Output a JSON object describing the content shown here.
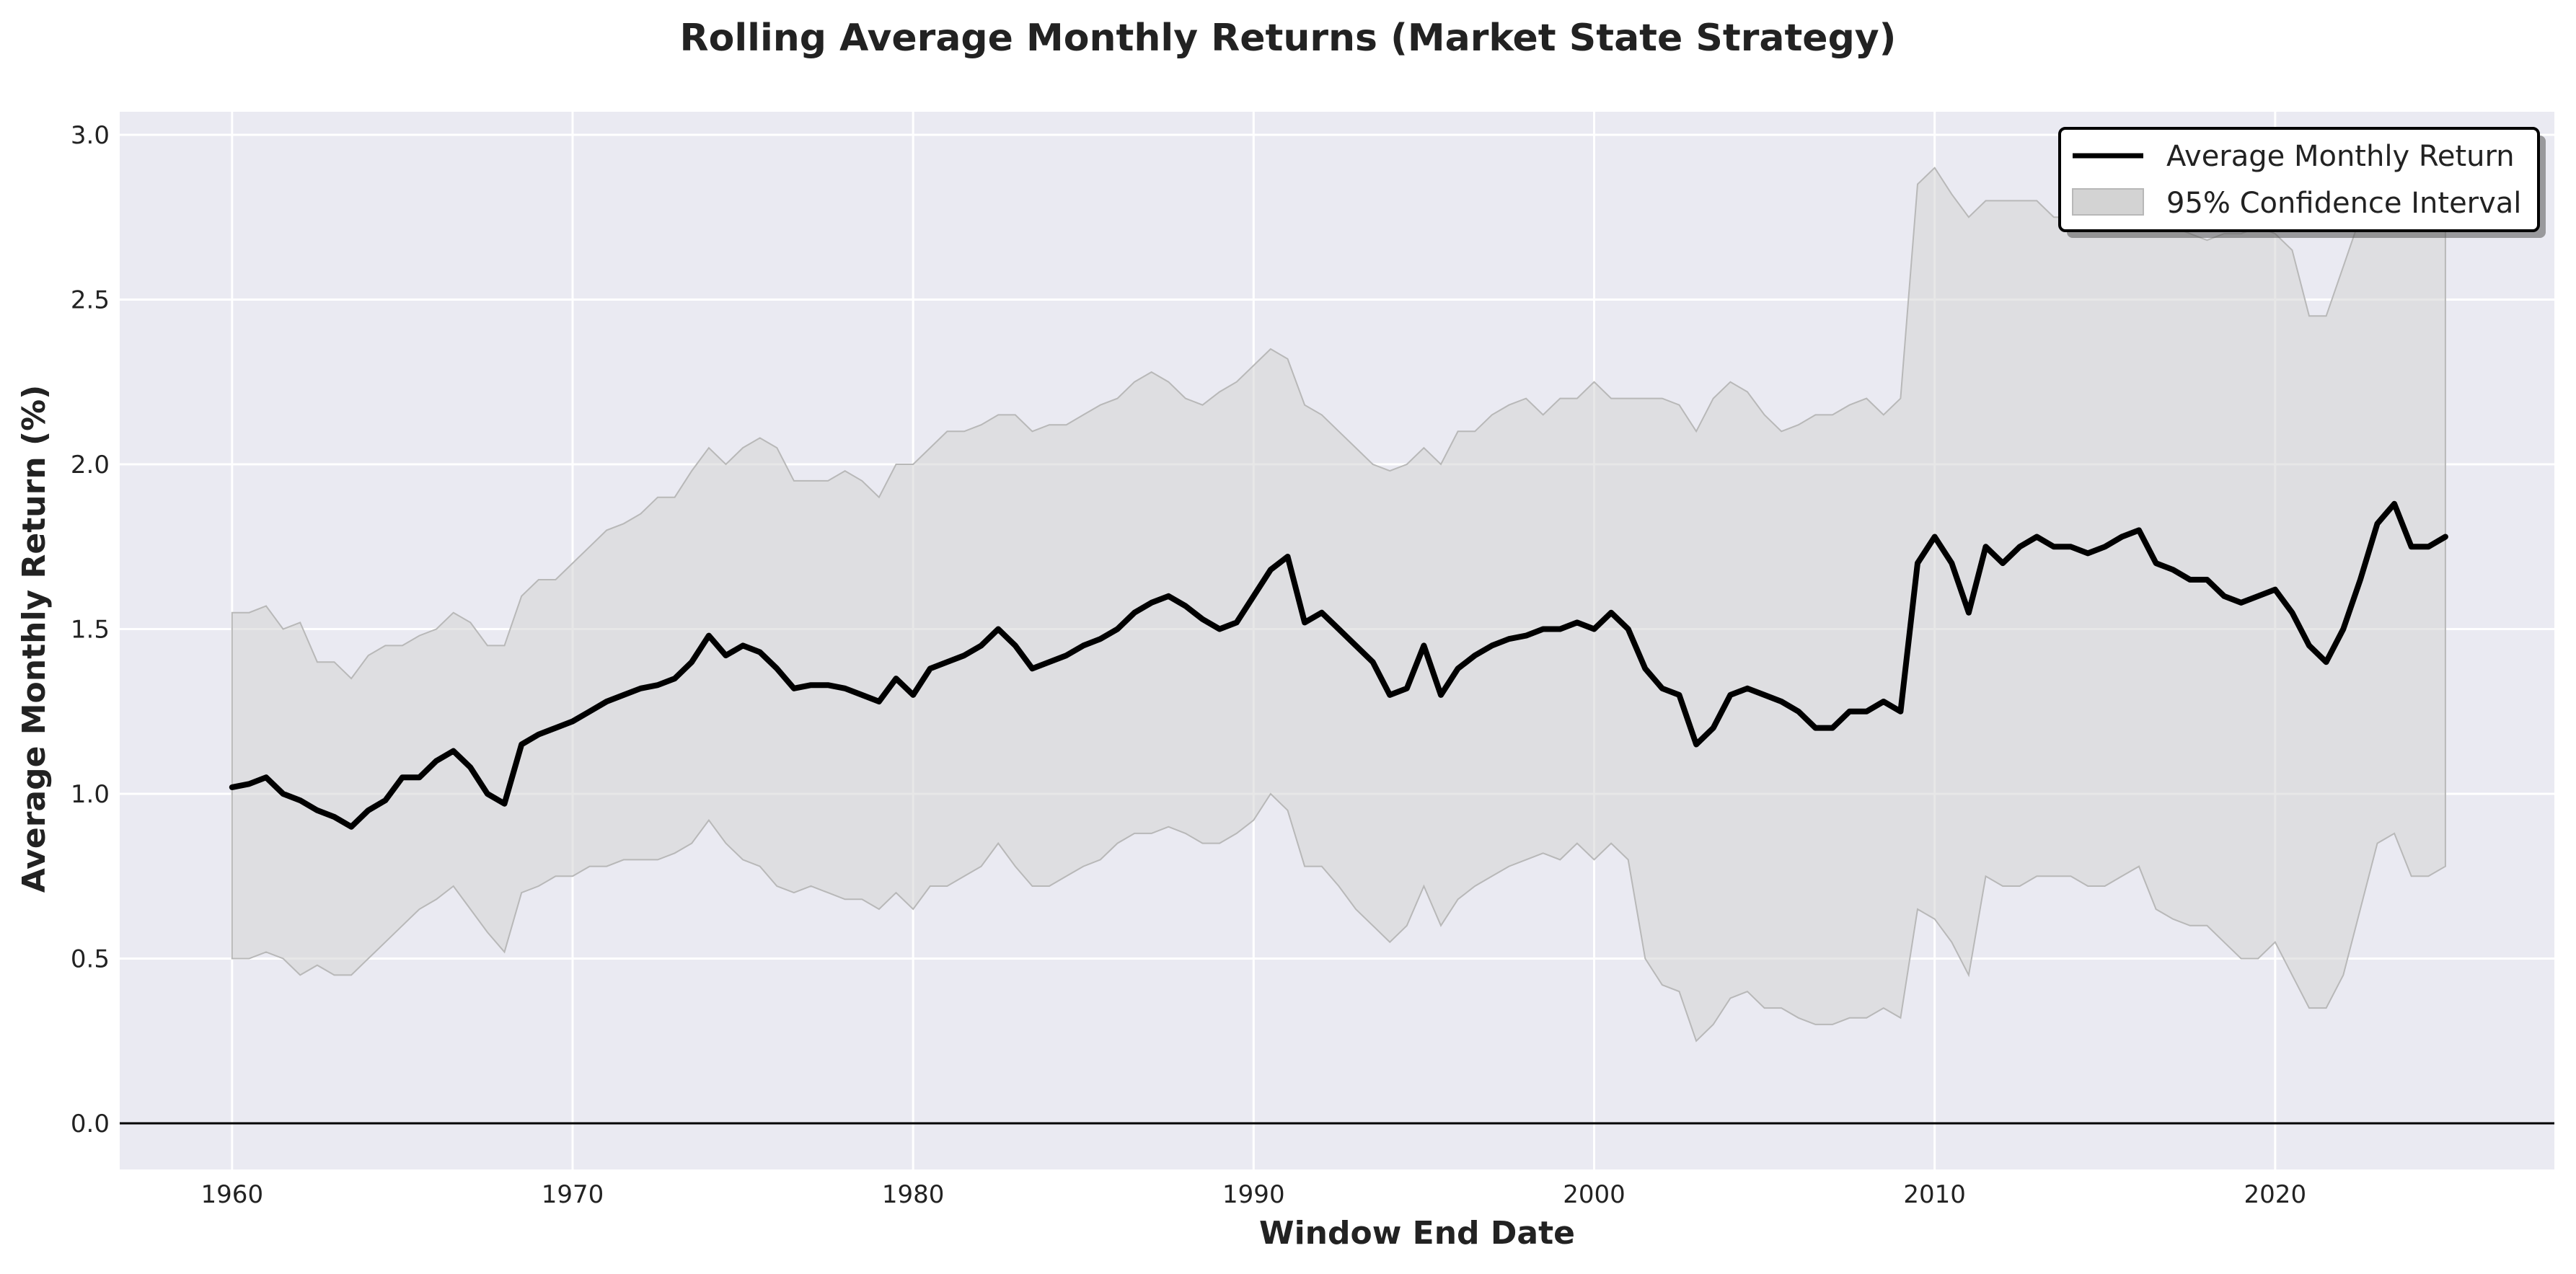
{
  "chart_data": {
    "type": "line",
    "title": "Rolling Average Monthly Returns (Market State Strategy)",
    "xlabel": "Window End Date",
    "ylabel": "Average Monthly Return (%)",
    "xlim": [
      1956.7,
      2028.2
    ],
    "ylim": [
      -0.14,
      3.07
    ],
    "x_ticks": [
      1960,
      1970,
      1980,
      1990,
      2000,
      2010,
      2020
    ],
    "y_ticks": [
      0.0,
      0.5,
      1.0,
      1.5,
      2.0,
      2.5,
      3.0
    ],
    "y_tick_labels": [
      "0.0",
      "0.5",
      "1.0",
      "1.5",
      "2.0",
      "2.5",
      "3.0"
    ],
    "grid": true,
    "legend_position": "top-right",
    "reference_line_y": 0.0,
    "colors": {
      "plot_background": "#eaeaf2",
      "grid": "#ffffff",
      "line": "#000000",
      "band_fill": "#d3d3d3",
      "band_edge": "#b8b8b8",
      "reference_line": "#000000"
    },
    "series": [
      {
        "name": "Average Monthly Return",
        "style": "line",
        "x": [
          1960.0,
          1960.5,
          1961.0,
          1961.5,
          1962.0,
          1962.5,
          1963.0,
          1963.5,
          1964.0,
          1964.5,
          1965.0,
          1965.5,
          1966.0,
          1966.5,
          1967.0,
          1967.5,
          1968.0,
          1968.5,
          1969.0,
          1969.5,
          1970.0,
          1970.5,
          1971.0,
          1971.5,
          1972.0,
          1972.5,
          1973.0,
          1973.5,
          1974.0,
          1974.5,
          1975.0,
          1975.5,
          1976.0,
          1976.5,
          1977.0,
          1977.5,
          1978.0,
          1978.5,
          1979.0,
          1979.5,
          1980.0,
          1980.5,
          1981.0,
          1981.5,
          1982.0,
          1982.5,
          1983.0,
          1983.5,
          1984.0,
          1984.5,
          1985.0,
          1985.5,
          1986.0,
          1986.5,
          1987.0,
          1987.5,
          1988.0,
          1988.5,
          1989.0,
          1989.5,
          1990.0,
          1990.5,
          1991.0,
          1991.5,
          1992.0,
          1992.5,
          1993.0,
          1993.5,
          1994.0,
          1994.5,
          1995.0,
          1995.5,
          1996.0,
          1996.5,
          1997.0,
          1997.5,
          1998.0,
          1998.5,
          1999.0,
          1999.5,
          2000.0,
          2000.5,
          2001.0,
          2001.5,
          2002.0,
          2002.5,
          2003.0,
          2003.5,
          2004.0,
          2004.5,
          2005.0,
          2005.5,
          2006.0,
          2006.5,
          2007.0,
          2007.5,
          2008.0,
          2008.5,
          2009.0,
          2009.5,
          2010.0,
          2010.5,
          2011.0,
          2011.5,
          2012.0,
          2012.5,
          2013.0,
          2013.5,
          2014.0,
          2014.5,
          2015.0,
          2015.5,
          2016.0,
          2016.5,
          2017.0,
          2017.5,
          2018.0,
          2018.5,
          2019.0,
          2019.5,
          2020.0,
          2020.5,
          2021.0,
          2021.5,
          2022.0,
          2022.5,
          2023.0,
          2023.5,
          2024.0,
          2024.5,
          2025.0
        ],
        "y": [
          1.02,
          1.03,
          1.05,
          1.0,
          0.98,
          0.95,
          0.93,
          0.9,
          0.95,
          0.98,
          1.05,
          1.05,
          1.1,
          1.13,
          1.08,
          1.0,
          0.97,
          1.15,
          1.18,
          1.2,
          1.22,
          1.25,
          1.28,
          1.3,
          1.32,
          1.33,
          1.35,
          1.4,
          1.48,
          1.42,
          1.45,
          1.43,
          1.38,
          1.32,
          1.33,
          1.33,
          1.32,
          1.3,
          1.28,
          1.35,
          1.3,
          1.38,
          1.4,
          1.42,
          1.45,
          1.5,
          1.45,
          1.38,
          1.4,
          1.42,
          1.45,
          1.47,
          1.5,
          1.55,
          1.58,
          1.6,
          1.57,
          1.53,
          1.5,
          1.52,
          1.6,
          1.68,
          1.72,
          1.52,
          1.55,
          1.5,
          1.45,
          1.4,
          1.3,
          1.32,
          1.45,
          1.3,
          1.38,
          1.42,
          1.45,
          1.47,
          1.48,
          1.5,
          1.5,
          1.52,
          1.5,
          1.55,
          1.5,
          1.38,
          1.32,
          1.3,
          1.15,
          1.2,
          1.3,
          1.32,
          1.3,
          1.28,
          1.25,
          1.2,
          1.2,
          1.25,
          1.25,
          1.28,
          1.25,
          1.7,
          1.78,
          1.7,
          1.55,
          1.75,
          1.7,
          1.75,
          1.78,
          1.75,
          1.75,
          1.73,
          1.75,
          1.78,
          1.8,
          1.7,
          1.68,
          1.65,
          1.65,
          1.6,
          1.58,
          1.6,
          1.62,
          1.55,
          1.45,
          1.4,
          1.5,
          1.65,
          1.82,
          1.88,
          1.75,
          1.75,
          1.78
        ]
      },
      {
        "name": "95% Confidence Interval",
        "style": "band",
        "x": [
          1960.0,
          1960.5,
          1961.0,
          1961.5,
          1962.0,
          1962.5,
          1963.0,
          1963.5,
          1964.0,
          1964.5,
          1965.0,
          1965.5,
          1966.0,
          1966.5,
          1967.0,
          1967.5,
          1968.0,
          1968.5,
          1969.0,
          1969.5,
          1970.0,
          1970.5,
          1971.0,
          1971.5,
          1972.0,
          1972.5,
          1973.0,
          1973.5,
          1974.0,
          1974.5,
          1975.0,
          1975.5,
          1976.0,
          1976.5,
          1977.0,
          1977.5,
          1978.0,
          1978.5,
          1979.0,
          1979.5,
          1980.0,
          1980.5,
          1981.0,
          1981.5,
          1982.0,
          1982.5,
          1983.0,
          1983.5,
          1984.0,
          1984.5,
          1985.0,
          1985.5,
          1986.0,
          1986.5,
          1987.0,
          1987.5,
          1988.0,
          1988.5,
          1989.0,
          1989.5,
          1990.0,
          1990.5,
          1991.0,
          1991.5,
          1992.0,
          1992.5,
          1993.0,
          1993.5,
          1994.0,
          1994.5,
          1995.0,
          1995.5,
          1996.0,
          1996.5,
          1997.0,
          1997.5,
          1998.0,
          1998.5,
          1999.0,
          1999.5,
          2000.0,
          2000.5,
          2001.0,
          2001.5,
          2002.0,
          2002.5,
          2003.0,
          2003.5,
          2004.0,
          2004.5,
          2005.0,
          2005.5,
          2006.0,
          2006.5,
          2007.0,
          2007.5,
          2008.0,
          2008.5,
          2009.0,
          2009.5,
          2010.0,
          2010.5,
          2011.0,
          2011.5,
          2012.0,
          2012.5,
          2013.0,
          2013.5,
          2014.0,
          2014.5,
          2015.0,
          2015.5,
          2016.0,
          2016.5,
          2017.0,
          2017.5,
          2018.0,
          2018.5,
          2019.0,
          2019.5,
          2020.0,
          2020.5,
          2021.0,
          2021.5,
          2022.0,
          2022.5,
          2023.0,
          2023.5,
          2024.0,
          2024.5,
          2025.0
        ],
        "upper": [
          1.55,
          1.55,
          1.57,
          1.5,
          1.52,
          1.4,
          1.4,
          1.35,
          1.42,
          1.45,
          1.45,
          1.48,
          1.5,
          1.55,
          1.52,
          1.45,
          1.45,
          1.6,
          1.65,
          1.65,
          1.7,
          1.75,
          1.8,
          1.82,
          1.85,
          1.9,
          1.9,
          1.98,
          2.05,
          2.0,
          2.05,
          2.08,
          2.05,
          1.95,
          1.95,
          1.95,
          1.98,
          1.95,
          1.9,
          2.0,
          2.0,
          2.05,
          2.1,
          2.1,
          2.12,
          2.15,
          2.15,
          2.1,
          2.12,
          2.12,
          2.15,
          2.18,
          2.2,
          2.25,
          2.28,
          2.25,
          2.2,
          2.18,
          2.22,
          2.25,
          2.3,
          2.35,
          2.32,
          2.18,
          2.15,
          2.1,
          2.05,
          2.0,
          1.98,
          2.0,
          2.05,
          2.0,
          2.1,
          2.1,
          2.15,
          2.18,
          2.2,
          2.15,
          2.2,
          2.2,
          2.25,
          2.2,
          2.2,
          2.2,
          2.2,
          2.18,
          2.1,
          2.2,
          2.25,
          2.22,
          2.15,
          2.1,
          2.12,
          2.15,
          2.15,
          2.18,
          2.2,
          2.15,
          2.2,
          2.85,
          2.9,
          2.82,
          2.75,
          2.8,
          2.8,
          2.8,
          2.8,
          2.75,
          2.75,
          2.78,
          2.75,
          2.78,
          2.75,
          2.75,
          2.72,
          2.7,
          2.68,
          2.7,
          2.7,
          2.72,
          2.7,
          2.65,
          2.45,
          2.45,
          2.6,
          2.75,
          2.85,
          2.9,
          2.9,
          2.85,
          2.85
        ],
        "lower": [
          0.5,
          0.5,
          0.52,
          0.5,
          0.45,
          0.48,
          0.45,
          0.45,
          0.5,
          0.55,
          0.6,
          0.65,
          0.68,
          0.72,
          0.65,
          0.58,
          0.52,
          0.7,
          0.72,
          0.75,
          0.75,
          0.78,
          0.78,
          0.8,
          0.8,
          0.8,
          0.82,
          0.85,
          0.92,
          0.85,
          0.8,
          0.78,
          0.72,
          0.7,
          0.72,
          0.7,
          0.68,
          0.68,
          0.65,
          0.7,
          0.65,
          0.72,
          0.72,
          0.75,
          0.78,
          0.85,
          0.78,
          0.72,
          0.72,
          0.75,
          0.78,
          0.8,
          0.85,
          0.88,
          0.88,
          0.9,
          0.88,
          0.85,
          0.85,
          0.88,
          0.92,
          1.0,
          0.95,
          0.78,
          0.78,
          0.72,
          0.65,
          0.6,
          0.55,
          0.6,
          0.72,
          0.6,
          0.68,
          0.72,
          0.75,
          0.78,
          0.8,
          0.82,
          0.8,
          0.85,
          0.8,
          0.85,
          0.8,
          0.5,
          0.42,
          0.4,
          0.25,
          0.3,
          0.38,
          0.4,
          0.35,
          0.35,
          0.32,
          0.3,
          0.3,
          0.32,
          0.32,
          0.35,
          0.32,
          0.65,
          0.62,
          0.55,
          0.45,
          0.75,
          0.72,
          0.72,
          0.75,
          0.75,
          0.75,
          0.72,
          0.72,
          0.75,
          0.78,
          0.65,
          0.62,
          0.6,
          0.6,
          0.55,
          0.5,
          0.5,
          0.55,
          0.45,
          0.35,
          0.35,
          0.45,
          0.65,
          0.85,
          0.88,
          0.75,
          0.75,
          0.78
        ]
      }
    ]
  }
}
